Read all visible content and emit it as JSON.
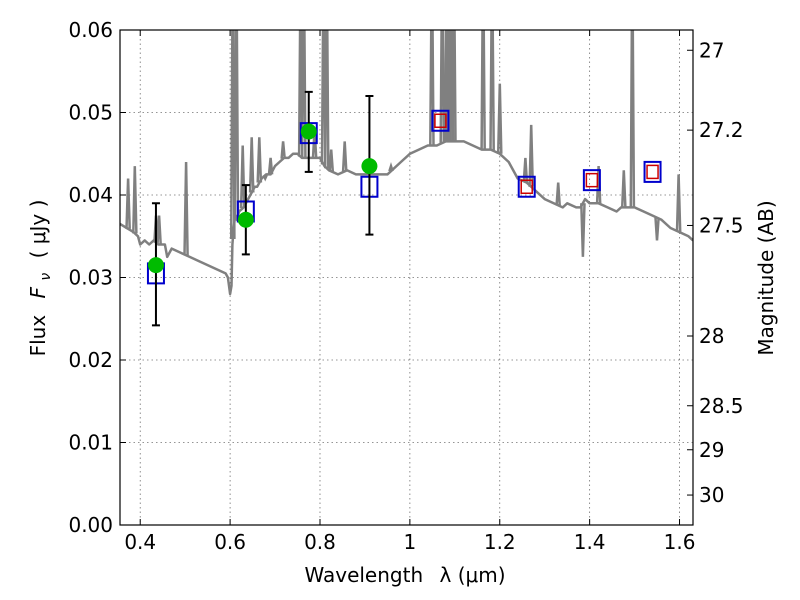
{
  "chart_data": {
    "type": "line",
    "xlabel": "Wavelength",
    "xlabel_symbol": "λ (μm)",
    "ylabel": "Flux",
    "ylabel_symbol": "F",
    "ylabel_subscript": "ν",
    "ylabel_unit": "( μJy )",
    "y2label": "Magnitude (AB)",
    "xlim": [
      0.355,
      1.63
    ],
    "ylim": [
      0.0,
      0.06
    ],
    "xticks": [
      0.4,
      0.6,
      0.8,
      1.0,
      1.2,
      1.4,
      1.6
    ],
    "xtick_labels": [
      "0.4",
      "0.6",
      "0.8",
      "1",
      "1.2",
      "1.4",
      "1.6"
    ],
    "yticks": [
      0.0,
      0.01,
      0.02,
      0.03,
      0.04,
      0.05,
      0.06
    ],
    "ytick_labels": [
      "0.00",
      "0.01",
      "0.02",
      "0.03",
      "0.04",
      "0.05",
      "0.06"
    ],
    "y2ticks": [
      27,
      27.2,
      27.5,
      28,
      28.5,
      29,
      30
    ],
    "y2tick_labels": [
      "27",
      "27.2",
      "27.5",
      "28",
      "28.5",
      "29",
      "30"
    ],
    "grid": true,
    "colors": {
      "spectrum": "#808080",
      "model_box": "#0000cc",
      "model_inner_box": "#cc0000",
      "observed_point": "#00bb00",
      "error_bar": "#000000"
    },
    "series": [
      {
        "name": "template spectrum",
        "type": "line",
        "x": [
          0.355,
          0.37,
          0.385,
          0.395,
          0.4,
          0.41,
          0.42,
          0.43,
          0.44,
          0.455,
          0.46,
          0.47,
          0.49,
          0.51,
          0.53,
          0.55,
          0.57,
          0.59,
          0.595,
          0.6,
          0.603,
          0.605,
          0.608,
          0.61,
          0.612,
          0.615,
          0.62,
          0.63,
          0.64,
          0.65,
          0.655,
          0.66,
          0.67,
          0.68,
          0.69,
          0.7,
          0.71,
          0.72,
          0.73,
          0.74,
          0.75,
          0.76,
          0.78,
          0.8,
          0.81,
          0.82,
          0.84,
          0.86,
          0.88,
          0.9,
          0.92,
          0.94,
          0.95,
          0.96,
          0.98,
          1.0,
          1.02,
          1.04,
          1.06,
          1.08,
          1.1,
          1.12,
          1.14,
          1.16,
          1.18,
          1.2,
          1.22,
          1.24,
          1.26,
          1.28,
          1.3,
          1.32,
          1.34,
          1.35,
          1.37,
          1.38,
          1.39,
          1.4,
          1.42,
          1.44,
          1.46,
          1.47,
          1.48,
          1.5,
          1.52,
          1.54,
          1.56,
          1.58,
          1.6,
          1.62,
          1.63
        ],
        "y": [
          0.0365,
          0.036,
          0.0355,
          0.035,
          0.034,
          0.0345,
          0.034,
          0.0345,
          0.034,
          0.034,
          0.0325,
          0.0335,
          0.033,
          0.0325,
          0.032,
          0.0315,
          0.031,
          0.0305,
          0.03,
          0.028,
          0.029,
          0.034,
          0.036,
          0.037,
          0.0375,
          0.037,
          0.038,
          0.0385,
          0.0395,
          0.0405,
          0.041,
          0.041,
          0.042,
          0.0425,
          0.0425,
          0.0435,
          0.044,
          0.0445,
          0.0445,
          0.045,
          0.045,
          0.0445,
          0.0445,
          0.0445,
          0.0435,
          0.043,
          0.0425,
          0.043,
          0.0425,
          0.0425,
          0.0425,
          0.0425,
          0.0425,
          0.043,
          0.044,
          0.045,
          0.0455,
          0.046,
          0.046,
          0.0465,
          0.0465,
          0.0465,
          0.046,
          0.0455,
          0.0455,
          0.045,
          0.044,
          0.042,
          0.0415,
          0.0405,
          0.0395,
          0.039,
          0.0385,
          0.039,
          0.0385,
          0.0385,
          0.0395,
          0.039,
          0.039,
          0.0385,
          0.038,
          0.0385,
          0.0385,
          0.0385,
          0.038,
          0.0375,
          0.037,
          0.036,
          0.0355,
          0.035,
          0.0345
        ]
      },
      {
        "name": "emission lines",
        "type": "spikes",
        "x": [
          0.373,
          0.388,
          0.435,
          0.442,
          0.502,
          0.606,
          0.614,
          0.628,
          0.648,
          0.665,
          0.678,
          0.69,
          0.718,
          0.745,
          0.757,
          0.764,
          0.788,
          0.808,
          0.815,
          0.825,
          0.855,
          0.958,
          1.049,
          1.072,
          1.082,
          1.085,
          1.093,
          1.098,
          1.163,
          1.183,
          1.2,
          1.257,
          1.27,
          1.33,
          1.385,
          1.42,
          1.476,
          1.495,
          1.55,
          1.598
        ],
        "y": [
          0.042,
          0.0435,
          0.0375,
          0.0375,
          0.044,
          0.07,
          0.07,
          0.046,
          0.047,
          0.047,
          0.042,
          0.0445,
          0.0465,
          0.045,
          0.07,
          0.07,
          0.048,
          0.07,
          0.07,
          0.0455,
          0.0465,
          0.0435,
          0.07,
          0.07,
          0.07,
          0.07,
          0.068,
          0.07,
          0.07,
          0.07,
          0.0535,
          0.0445,
          0.0485,
          0.0415,
          0.0325,
          0.0435,
          0.043,
          0.07,
          0.0345,
          0.0425
        ]
      },
      {
        "name": "model photometry",
        "type": "scatter",
        "marker": "square",
        "x": [
          0.435,
          0.635,
          0.775,
          0.91,
          1.068,
          1.26,
          1.405,
          1.54
        ],
        "y": [
          0.0305,
          0.038,
          0.0475,
          0.041,
          0.049,
          0.041,
          0.0418,
          0.0428
        ]
      },
      {
        "name": "model photometry (inner)",
        "type": "scatter",
        "marker": "square",
        "x": [
          1.068,
          1.26,
          1.405,
          1.54
        ],
        "y": [
          0.049,
          0.041,
          0.0418,
          0.0428
        ]
      },
      {
        "name": "observed photometry",
        "type": "errorbar",
        "marker": "circle",
        "x": [
          0.435,
          0.635,
          0.775,
          0.91
        ],
        "y": [
          0.0315,
          0.037,
          0.0477,
          0.0435
        ],
        "yerr_low": [
          0.0242,
          0.0328,
          0.0428,
          0.0352
        ],
        "yerr_high": [
          0.039,
          0.0412,
          0.0525,
          0.052
        ]
      }
    ]
  }
}
